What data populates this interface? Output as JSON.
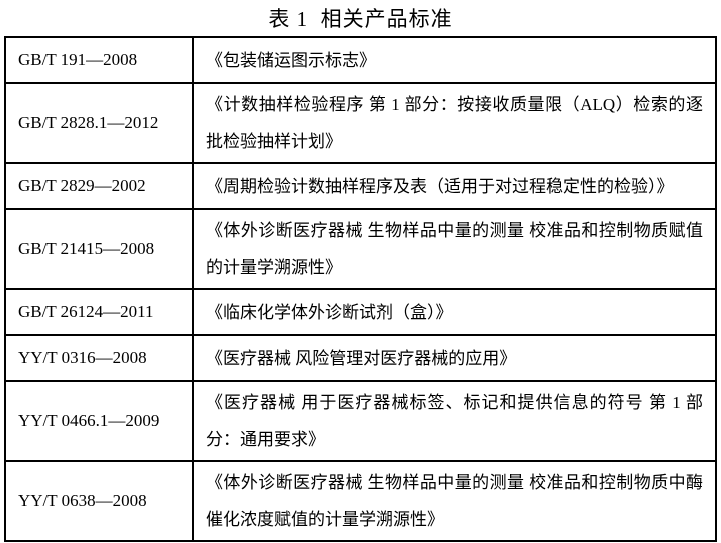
{
  "document": {
    "caption": "表 1  相关产品标准",
    "table": {
      "rows": [
        {
          "code": "GB/T 191—2008",
          "name": "《包装储运图示标志》"
        },
        {
          "code": "GB/T 2828.1—2012",
          "name": "《计数抽样检验程序 第 1 部分：按接收质量限（ALQ）检索的逐批检验抽样计划》"
        },
        {
          "code": "GB/T 2829—2002",
          "name": "《周期检验计数抽样程序及表（适用于对过程稳定性的检验）》"
        },
        {
          "code": "GB/T 21415—2008",
          "name": "《体外诊断医疗器械 生物样品中量的测量 校准品和控制物质赋值的计量学溯源性》"
        },
        {
          "code": "GB/T 26124—2011",
          "name": "《临床化学体外诊断试剂（盒）》"
        },
        {
          "code": "YY/T 0316—2008",
          "name": "《医疗器械 风险管理对医疗器械的应用》"
        },
        {
          "code": "YY/T 0466.1—2009",
          "name": "《医疗器械 用于医疗器械标签、标记和提供信息的符号 第 1 部分：通用要求》"
        },
        {
          "code": "YY/T 0638—2008",
          "name": "《体外诊断医疗器械 生物样品中量的测量 校准品和控制物质中酶催化浓度赋值的计量学溯源性》"
        }
      ]
    }
  },
  "colors": {
    "text": "#000000",
    "background": "#ffffff",
    "border": "#000000"
  }
}
